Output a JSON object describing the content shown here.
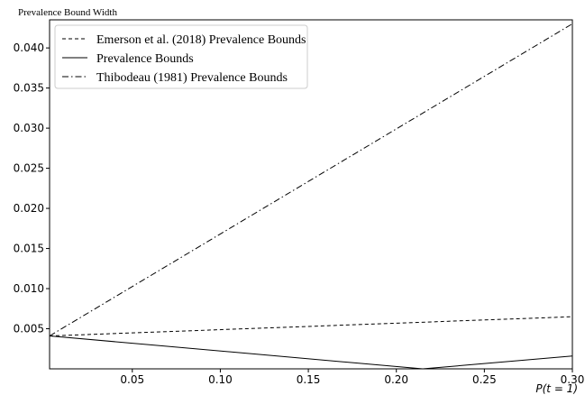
{
  "chart_data": {
    "type": "line",
    "ylabel": "Prevalence Bound Width",
    "xlabel": "P(t = 1)",
    "xlim": [
      0.003,
      0.3
    ],
    "ylim": [
      0.0,
      0.0435
    ],
    "xticks": [
      0.05,
      0.1,
      0.15,
      0.2,
      0.25,
      0.3
    ],
    "xtick_labels": [
      "0.05",
      "0.10",
      "0.15",
      "0.20",
      "0.25",
      "0.30"
    ],
    "yticks": [
      0.005,
      0.01,
      0.015,
      0.02,
      0.025,
      0.03,
      0.035,
      0.04
    ],
    "ytick_labels": [
      "0.005",
      "0.010",
      "0.015",
      "0.020",
      "0.025",
      "0.030",
      "0.035",
      "0.040"
    ],
    "grid": false,
    "legend_position": "top-left",
    "series": [
      {
        "name": "Emerson et al. (2018) Prevalence Bounds",
        "style": "dashed",
        "x": [
          0.003,
          0.3
        ],
        "y": [
          0.0041,
          0.0065
        ]
      },
      {
        "name": "Prevalence Bounds",
        "style": "solid",
        "x": [
          0.003,
          0.215,
          0.3
        ],
        "y": [
          0.0041,
          0.0,
          0.0016
        ]
      },
      {
        "name": "Thibodeau (1981) Prevalence Bounds",
        "style": "dashdot",
        "x": [
          0.003,
          0.3
        ],
        "y": [
          0.0041,
          0.043
        ]
      }
    ]
  }
}
